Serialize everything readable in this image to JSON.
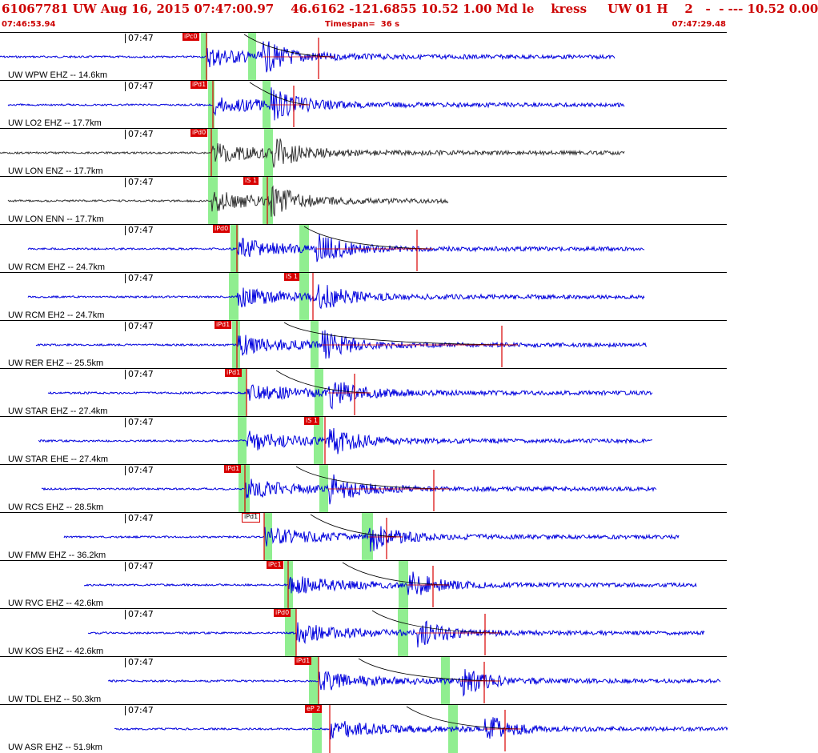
{
  "header": {
    "title": "61067781 UW Aug 16, 2015 07:47:00.97    46.6162 -121.6855 10.52 1.00 Md le    kress     UW 01 H    2   -  - --- 10.52 0.00",
    "start_time": "07:46:53.94",
    "timespan": "Timespan=  36 s",
    "end_time": "07:47:29.48"
  },
  "colors": {
    "header_text": "#cc0000",
    "trace_blue": "#0000dd",
    "trace_gray": "#333333",
    "pick_red": "#d80000",
    "window_green": "#90ee90"
  },
  "panels": [
    {
      "label": "UW WPW EHZ -- 14.6km",
      "time": "07:47",
      "pick": "iPc0",
      "trace_color": "blue"
    },
    {
      "label": "UW LO2 EHZ -- 17.7km",
      "time": "07:47",
      "pick": "iPd1",
      "trace_color": "blue"
    },
    {
      "label": "UW LON ENZ -- 17.7km",
      "time": "07:47",
      "pick": "iPd0",
      "trace_color": "gray"
    },
    {
      "label": "UW LON ENN -- 17.7km",
      "time": "07:47",
      "pick": "iS 1",
      "trace_color": "gray"
    },
    {
      "label": "UW RCM EHZ -- 24.7km",
      "time": "07:47",
      "pick": "iPd0",
      "trace_color": "blue"
    },
    {
      "label": "UW RCM EH2 -- 24.7km",
      "time": "07:47",
      "pick": "iS 1",
      "trace_color": "blue"
    },
    {
      "label": "UW RER EHZ -- 25.5km",
      "time": "07:47",
      "pick": "iPd1",
      "trace_color": "blue"
    },
    {
      "label": "UW STAR EHZ -- 27.4km",
      "time": "07:47",
      "pick": "iPd1",
      "trace_color": "blue"
    },
    {
      "label": "UW STAR EHE -- 27.4km",
      "time": "07:47",
      "pick": "iS 1",
      "trace_color": "blue"
    },
    {
      "label": "UW RCS EHZ -- 28.5km",
      "time": "07:47",
      "pick": "iPd1",
      "trace_color": "blue"
    },
    {
      "label": "UW FMW EHZ -- 36.2km",
      "time": "07:47",
      "pick": "iPd1",
      "trace_color": "blue"
    },
    {
      "label": "UW RVC EHZ -- 42.6km",
      "time": "07:47",
      "pick": "iPc1",
      "trace_color": "blue"
    },
    {
      "label": "UW KOS EHZ -- 42.6km",
      "time": "07:47",
      "pick": "iPd0",
      "trace_color": "blue"
    },
    {
      "label": "UW TDL EHZ -- 50.3km",
      "time": "07:47",
      "pick": "iPd1",
      "trace_color": "blue"
    },
    {
      "label": "UW ASR EHZ -- 51.9km",
      "time": "07:47",
      "pick": "eP 2",
      "trace_color": "blue"
    }
  ]
}
